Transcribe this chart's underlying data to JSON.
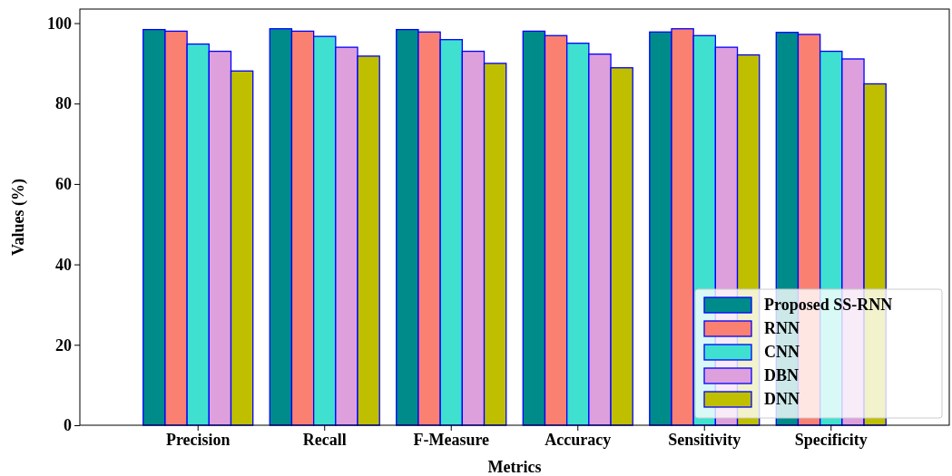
{
  "chart_data": {
    "type": "bar",
    "xlabel": "Metrics",
    "ylabel": "Values (%)",
    "categories": [
      "Precision",
      "Recall",
      "F-Measure",
      "Accuracy",
      "Sensitivity",
      "Specificity"
    ],
    "series": [
      {
        "name": "Proposed SS-RNN",
        "color": "#008b8b",
        "values": [
          98.4,
          98.6,
          98.4,
          98.0,
          97.8,
          97.7
        ]
      },
      {
        "name": "RNN",
        "color": "#fa8072",
        "values": [
          98.0,
          98.0,
          97.8,
          96.9,
          98.6,
          97.2
        ]
      },
      {
        "name": "CNN",
        "color": "#40e0d0",
        "values": [
          94.8,
          96.7,
          95.9,
          95.0,
          96.9,
          93.0
        ]
      },
      {
        "name": "DBN",
        "color": "#dda0dd",
        "values": [
          93.0,
          94.0,
          93.0,
          92.3,
          94.0,
          91.1
        ]
      },
      {
        "name": "DNN",
        "color": "#bfbf00",
        "values": [
          88.1,
          91.8,
          90.0,
          88.9,
          92.1,
          84.9
        ]
      }
    ],
    "ylim": [
      0,
      103.5
    ],
    "yticks": [
      0,
      20,
      40,
      60,
      80,
      100
    ],
    "grid": false,
    "legend": "bottom right"
  }
}
